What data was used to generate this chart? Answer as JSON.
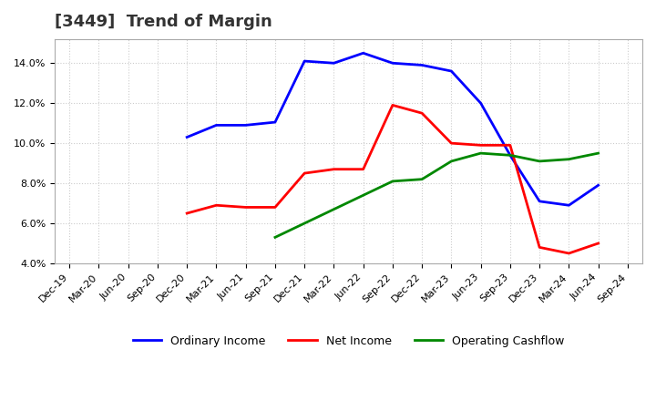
{
  "title": "[3449]  Trend of Margin",
  "x_labels": [
    "Dec-19",
    "Mar-20",
    "Jun-20",
    "Sep-20",
    "Dec-20",
    "Mar-21",
    "Jun-21",
    "Sep-21",
    "Dec-21",
    "Mar-22",
    "Jun-22",
    "Sep-22",
    "Dec-22",
    "Mar-23",
    "Jun-23",
    "Sep-23",
    "Dec-23",
    "Mar-24",
    "Jun-24",
    "Sep-24"
  ],
  "oi_x": [
    4,
    5,
    6,
    7,
    8,
    9,
    10,
    11,
    12,
    13,
    14,
    15,
    16,
    17,
    18
  ],
  "oi_y": [
    10.3,
    10.9,
    10.9,
    11.05,
    14.1,
    14.0,
    14.5,
    14.0,
    13.9,
    13.6,
    12.0,
    9.4,
    7.1,
    6.9,
    7.9
  ],
  "ni_x": [
    4,
    5,
    6,
    7,
    8,
    9,
    10,
    11,
    12,
    13,
    14,
    15,
    16,
    17,
    18
  ],
  "ni_y": [
    6.5,
    6.9,
    6.8,
    6.8,
    8.5,
    8.7,
    8.7,
    11.9,
    11.5,
    10.0,
    9.9,
    9.9,
    4.8,
    4.5,
    5.0
  ],
  "ocf_x": [
    7,
    11,
    12,
    13,
    14,
    15,
    16,
    17,
    18
  ],
  "ocf_y": [
    5.3,
    8.1,
    8.2,
    9.1,
    9.5,
    9.4,
    9.1,
    9.2,
    9.5
  ],
  "ylim": [
    4.0,
    15.2
  ],
  "yticks": [
    4.0,
    6.0,
    8.0,
    10.0,
    12.0,
    14.0
  ],
  "colors": {
    "ordinary_income": "#0000ff",
    "net_income": "#ff0000",
    "operating_cashflow": "#008800"
  },
  "legend_labels": [
    "Ordinary Income",
    "Net Income",
    "Operating Cashflow"
  ],
  "title_color": "#333333",
  "title_fontsize": 13,
  "line_width": 2.0,
  "grid_color": "#cccccc",
  "tick_fontsize": 8
}
